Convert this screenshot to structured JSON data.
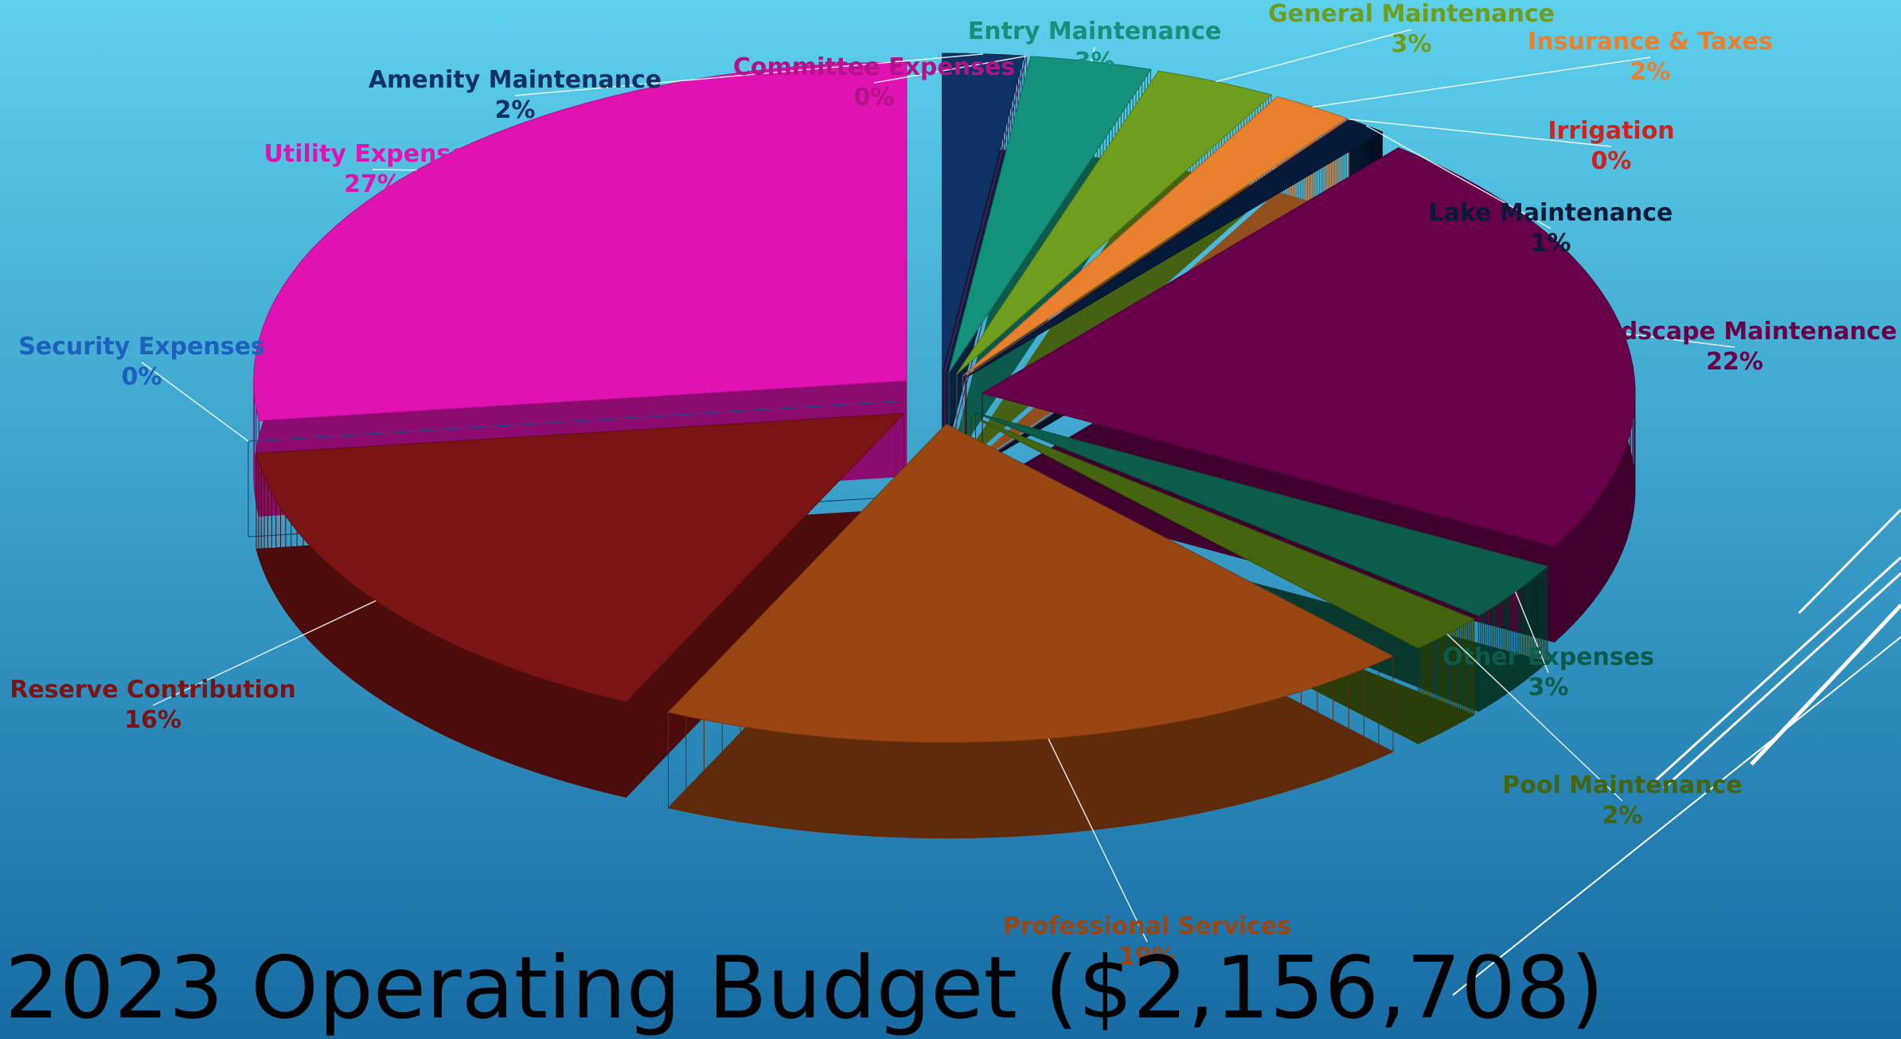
{
  "chart_data": {
    "type": "pie",
    "title": "2023 Operating Budget ($2,156,708)",
    "categories": [
      "Amenity Maintenance",
      "Committee Expenses",
      "Entry Maintenance",
      "General Maintenance",
      "Insurance & Taxes",
      "Irrigation",
      "Lake Maintenance",
      "Landscape Maintenance",
      "Other Expenses",
      "Pool Maintenance",
      "Professional Services",
      "Reserve Contribution",
      "Security Expenses",
      "Utility Expenses"
    ],
    "values": [
      2,
      0,
      3,
      3,
      2,
      0,
      1,
      22,
      3,
      2,
      19,
      16,
      0,
      27
    ],
    "value_labels": [
      "2%",
      "0%",
      "3%",
      "3%",
      "2%",
      "0%",
      "1%",
      "22%",
      "3%",
      "2%",
      "19%",
      "16%",
      "0%",
      "27%"
    ],
    "colors": [
      "#0f3264",
      "#b0138a",
      "#13917a",
      "#6f9e1e",
      "#e9802e",
      "#cc2420",
      "#041a38",
      "#680049",
      "#0b5c4a",
      "#44640f",
      "#9a4612",
      "#7b1414",
      "#1e60bd",
      "#e012b2"
    ]
  }
}
